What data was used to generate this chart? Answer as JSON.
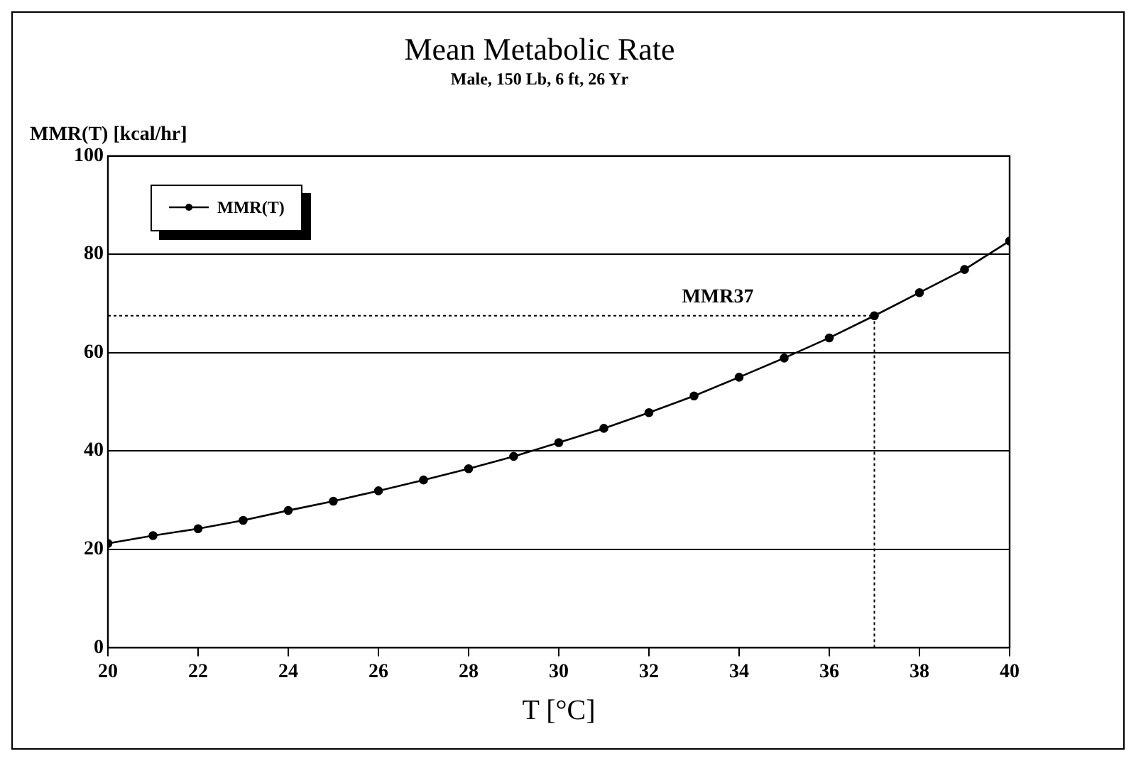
{
  "chart_data": {
    "type": "line",
    "title": "Mean Metabolic Rate",
    "subtitle": "Male, 150 Lb, 6 ft, 26 Yr",
    "xlabel": "T [°C]",
    "ylabel": "MMR(T) [kcal/hr]",
    "x": [
      20,
      21,
      22,
      23,
      24,
      25,
      26,
      27,
      28,
      29,
      30,
      31,
      32,
      33,
      34,
      35,
      36,
      37,
      38,
      39,
      40
    ],
    "series": [
      {
        "name": "MMR(T)",
        "color": "#000000",
        "values": [
          21.2,
          22.8,
          24.2,
          25.9,
          27.9,
          29.8,
          31.9,
          34.1,
          36.4,
          38.9,
          41.7,
          44.6,
          47.8,
          51.2,
          55.0,
          58.9,
          63.0,
          67.5,
          72.2,
          76.9,
          82.7
        ]
      }
    ],
    "xlim": [
      20,
      40
    ],
    "xticks": [
      20,
      22,
      24,
      26,
      28,
      30,
      32,
      34,
      36,
      38,
      40
    ],
    "ylim": [
      0,
      100
    ],
    "yticks": [
      0,
      20,
      40,
      60,
      80,
      100
    ],
    "ref_lines": [
      {
        "axis": "y",
        "value": 67.5,
        "label": "MMR37",
        "line_style": "dotted"
      },
      {
        "axis": "x",
        "value": 37,
        "label": null,
        "line_style": "dotted"
      }
    ],
    "grid": "y",
    "legend": "top left",
    "marker": "circle",
    "line_style": "solid"
  }
}
